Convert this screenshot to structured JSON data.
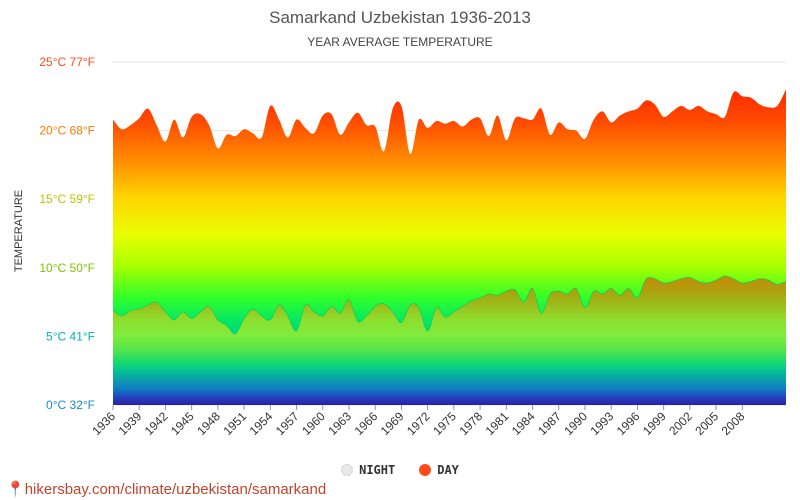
{
  "title": "Samarkand Uzbekistan 1936-2013",
  "subtitle": "YEAR AVERAGE TEMPERATURE",
  "ylabel": "TEMPERATURE",
  "source_text": "hikersbay.com/climate/uzbekistan/samarkand",
  "legend": {
    "night": "NIGHT",
    "day": "DAY"
  },
  "colors": {
    "title": "#555555",
    "day_line": "#ff4a1a",
    "night_fill_top": "#00e66b",
    "bottom_fill": "#2a1fa8",
    "source": "#c1442d"
  },
  "chart_data": {
    "type": "area",
    "title": "Samarkand Uzbekistan 1936-2013",
    "subtitle": "YEAR AVERAGE TEMPERATURE",
    "ylabel": "TEMPERATURE",
    "ylim": [
      0,
      25
    ],
    "yticks": [
      {
        "value": 0,
        "label": "0°C 32°F"
      },
      {
        "value": 5,
        "label": "5°C 41°F"
      },
      {
        "value": 10,
        "label": "10°C 50°F"
      },
      {
        "value": 15,
        "label": "15°C 59°F"
      },
      {
        "value": 20,
        "label": "20°C 68°F"
      },
      {
        "value": 25,
        "label": "25°C 77°F"
      }
    ],
    "xticks": [
      "1936",
      "1939",
      "1942",
      "1945",
      "1948",
      "1951",
      "1954",
      "1957",
      "1960",
      "1963",
      "1966",
      "1969",
      "1972",
      "1975",
      "1978",
      "1981",
      "1984",
      "1987",
      "1990",
      "1993",
      "1996",
      "1999",
      "2002",
      "2005",
      "2008"
    ],
    "x": [
      1936,
      1937,
      1938,
      1939,
      1940,
      1941,
      1942,
      1943,
      1944,
      1945,
      1946,
      1947,
      1948,
      1949,
      1950,
      1951,
      1952,
      1953,
      1954,
      1955,
      1956,
      1957,
      1958,
      1959,
      1960,
      1961,
      1962,
      1963,
      1964,
      1965,
      1966,
      1967,
      1968,
      1969,
      1970,
      1971,
      1972,
      1973,
      1974,
      1975,
      1976,
      1977,
      1978,
      1979,
      1980,
      1981,
      1982,
      1983,
      1984,
      1985,
      1986,
      1987,
      1988,
      1989,
      1990,
      1991,
      1992,
      1993,
      1994,
      1995,
      1996,
      1997,
      1998,
      1999,
      2000,
      2001,
      2002,
      2003,
      2004,
      2005,
      2006,
      2007,
      2008,
      2009,
      2010,
      2011,
      2012,
      2013
    ],
    "series": [
      {
        "name": "DAY",
        "values": [
          20.8,
          20.1,
          20.4,
          20.9,
          21.6,
          20.4,
          19.2,
          20.8,
          19.5,
          21.0,
          21.2,
          20.4,
          18.7,
          19.7,
          19.6,
          20.1,
          19.8,
          19.5,
          21.8,
          20.8,
          19.5,
          20.8,
          20.2,
          19.8,
          21.1,
          21.2,
          19.7,
          20.6,
          21.3,
          20.4,
          20.3,
          18.5,
          21.6,
          21.8,
          18.3,
          20.8,
          20.2,
          20.7,
          20.5,
          20.7,
          20.3,
          20.8,
          20.9,
          19.6,
          21.1,
          19.3,
          20.9,
          20.9,
          20.8,
          21.6,
          19.7,
          20.6,
          20.1,
          20.0,
          19.4,
          20.8,
          21.4,
          20.6,
          21.1,
          21.4,
          21.6,
          22.2,
          21.9,
          21.0,
          21.4,
          21.8,
          21.5,
          21.8,
          21.4,
          21.2,
          21.0,
          22.8,
          22.5,
          22.4,
          21.9,
          21.7,
          21.8,
          23.0
        ]
      },
      {
        "name": "NIGHT",
        "values": [
          6.9,
          6.5,
          6.9,
          7.0,
          7.3,
          7.5,
          6.8,
          6.2,
          6.8,
          6.3,
          6.8,
          7.2,
          6.2,
          5.8,
          5.2,
          6.3,
          7.0,
          6.5,
          6.2,
          7.3,
          6.5,
          5.4,
          7.3,
          6.8,
          6.5,
          7.2,
          6.7,
          7.7,
          6.1,
          6.5,
          7.2,
          7.4,
          6.8,
          6.0,
          7.3,
          7.1,
          5.4,
          7.1,
          6.4,
          6.8,
          7.2,
          7.6,
          7.8,
          8.1,
          8.0,
          8.3,
          8.4,
          7.5,
          8.5,
          6.7,
          8.1,
          8.3,
          8.1,
          8.5,
          7.1,
          8.3,
          8.1,
          8.5,
          8.0,
          8.5,
          7.8,
          9.2,
          9.2,
          8.9,
          9.0,
          9.2,
          9.3,
          9.0,
          8.9,
          9.1,
          9.4,
          9.2,
          8.9,
          9.0,
          9.2,
          9.1,
          8.8,
          9.0
        ]
      }
    ]
  }
}
